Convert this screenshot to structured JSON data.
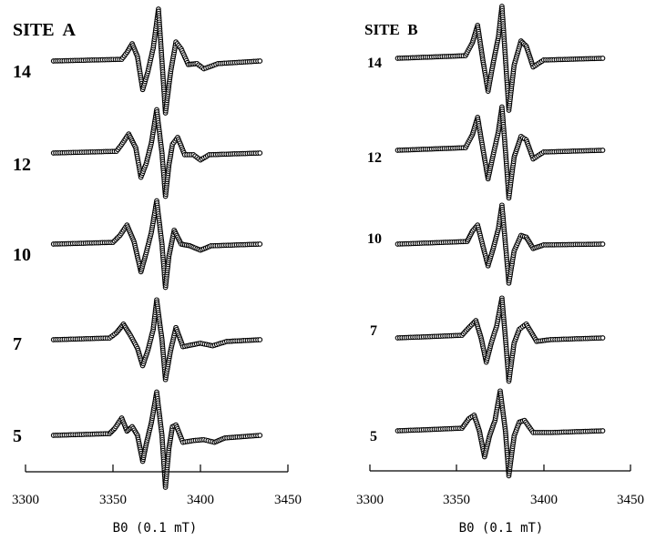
{
  "chart_data": [
    {
      "type": "line",
      "title": "SITE  A",
      "xlabel": "B0 (0.1 mT)",
      "xlim": [
        3300,
        3450
      ],
      "xticks": [
        "3300",
        "3350",
        "3400",
        "3450"
      ],
      "ylabel": "",
      "grid": false,
      "series": [
        {
          "name": "14",
          "x": [
            3316,
            3355,
            3358,
            3361,
            3364,
            3367,
            3370,
            3373,
            3376,
            3378,
            3380,
            3383,
            3386,
            3389,
            3393,
            3398,
            3402,
            3410,
            3434
          ],
          "y": [
            0,
            2,
            10,
            20,
            5,
            -33,
            -12,
            15,
            60,
            0,
            -60,
            -12,
            22,
            14,
            -4,
            -3,
            -9,
            -3,
            0
          ]
        },
        {
          "name": "12",
          "x": [
            3316,
            3352,
            3355,
            3359,
            3363,
            3366,
            3369,
            3372,
            3375,
            3378,
            3380,
            3382,
            3384,
            3387,
            3391,
            3396,
            3400,
            3405,
            3434
          ],
          "y": [
            0,
            2,
            10,
            22,
            6,
            -28,
            -12,
            12,
            50,
            0,
            -50,
            -14,
            10,
            18,
            -2,
            -2,
            -8,
            -2,
            0
          ]
        },
        {
          "name": "10",
          "x": [
            3316,
            3350,
            3354,
            3358,
            3362,
            3366,
            3369,
            3372,
            3375,
            3378,
            3380,
            3382,
            3385,
            3389,
            3394,
            3400,
            3406,
            3434
          ],
          "y": [
            0,
            2,
            10,
            22,
            3,
            -32,
            -10,
            14,
            50,
            0,
            -50,
            -14,
            16,
            0,
            -2,
            -7,
            -2,
            0
          ]
        },
        {
          "name": "7",
          "x": [
            3316,
            3348,
            3352,
            3356,
            3360,
            3364,
            3367,
            3370,
            3373,
            3375,
            3378,
            3380,
            3383,
            3386,
            3390,
            3400,
            3407,
            3415,
            3434
          ],
          "y": [
            0,
            2,
            8,
            18,
            5,
            -10,
            -30,
            -12,
            12,
            46,
            0,
            -46,
            -12,
            14,
            -8,
            -4,
            -7,
            -2,
            0
          ]
        },
        {
          "name": "5",
          "x": [
            3316,
            3348,
            3351,
            3355,
            3358,
            3361,
            3364,
            3367,
            3369,
            3372,
            3375,
            3378,
            3380,
            3382,
            3384,
            3386,
            3390,
            3396,
            3402,
            3408,
            3414,
            3434
          ],
          "y": [
            0,
            2,
            8,
            20,
            5,
            10,
            0,
            -30,
            -10,
            15,
            50,
            0,
            -60,
            -15,
            10,
            12,
            -8,
            -6,
            -5,
            -8,
            -3,
            0
          ]
        }
      ]
    },
    {
      "type": "line",
      "title": "SITE  B",
      "xlabel": "B0 (0.1 mT)",
      "xlim": [
        3300,
        3450
      ],
      "xticks": [
        "3300",
        "3350",
        "3400",
        "3450"
      ],
      "ylabel": "",
      "grid": false,
      "series": [
        {
          "name": "14",
          "x": [
            3316,
            3355,
            3359,
            3362,
            3365,
            3368,
            3371,
            3374,
            3376,
            3378,
            3380,
            3383,
            3387,
            3390,
            3394,
            3400,
            3434
          ],
          "y": [
            0,
            3,
            18,
            38,
            -2,
            -38,
            -5,
            25,
            60,
            0,
            -60,
            -8,
            20,
            14,
            -10,
            -2,
            0
          ]
        },
        {
          "name": "12",
          "x": [
            3316,
            3355,
            3359,
            3362,
            3365,
            3368,
            3371,
            3374,
            3376,
            3378,
            3380,
            3383,
            3387,
            3390,
            3394,
            3400,
            3434
          ],
          "y": [
            0,
            3,
            18,
            38,
            2,
            -33,
            -5,
            22,
            50,
            0,
            -55,
            -8,
            16,
            12,
            -10,
            -2,
            0
          ]
        },
        {
          "name": "10",
          "x": [
            3316,
            3356,
            3359,
            3362,
            3365,
            3368,
            3371,
            3374,
            3376,
            3378,
            3380,
            3383,
            3387,
            3390,
            3394,
            3400,
            3434
          ],
          "y": [
            0,
            3,
            15,
            22,
            -2,
            -25,
            -5,
            18,
            45,
            0,
            -45,
            -8,
            10,
            8,
            -5,
            -1,
            0
          ]
        },
        {
          "name": "7",
          "x": [
            3316,
            3353,
            3357,
            3361,
            3364,
            3367,
            3370,
            3373,
            3376,
            3378,
            3380,
            3383,
            3386,
            3390,
            3396,
            3404,
            3434
          ],
          "y": [
            0,
            3,
            12,
            20,
            0,
            -28,
            -5,
            14,
            46,
            0,
            -50,
            -6,
            10,
            16,
            -4,
            -2,
            0
          ]
        },
        {
          "name": "5",
          "x": [
            3316,
            3353,
            3357,
            3360,
            3363,
            3366,
            3369,
            3372,
            3375,
            3378,
            3380,
            3383,
            3386,
            3389,
            3394,
            3404,
            3434
          ],
          "y": [
            0,
            3,
            14,
            18,
            0,
            -30,
            -5,
            12,
            46,
            0,
            -52,
            -6,
            10,
            12,
            -2,
            -2,
            0
          ]
        }
      ]
    }
  ]
}
